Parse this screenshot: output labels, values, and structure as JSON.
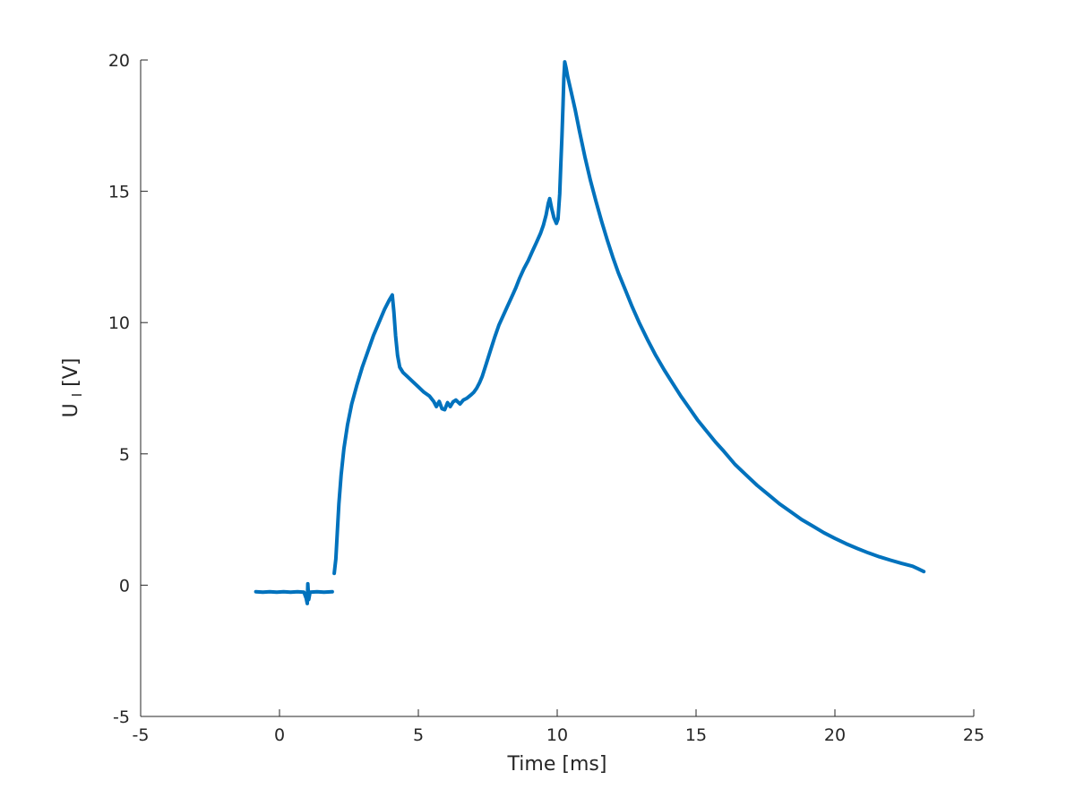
{
  "figure": {
    "background": "#ffffff",
    "line_color": "#0072bd",
    "axis_color": "#262626",
    "text_color": "#262626"
  },
  "chart_data": {
    "type": "line",
    "title": "",
    "xlabel": "Time [ms]",
    "ylabel": "U_I [V]",
    "ylabel_parts": {
      "base": "U",
      "sub": "I",
      "unit": " [V]"
    },
    "xlim": [
      -5,
      25
    ],
    "ylim": [
      -5,
      20
    ],
    "xticks": [
      "-5",
      "0",
      "5",
      "10",
      "15",
      "20",
      "25"
    ],
    "yticks": [
      "-5",
      "0",
      "5",
      "10",
      "15",
      "20"
    ],
    "grid": false,
    "legend": null,
    "series": [
      {
        "name": "U_I",
        "color": "#0072bd",
        "segments": [
          [
            [
              -0.85,
              -0.25
            ],
            [
              -0.6,
              -0.27
            ],
            [
              -0.35,
              -0.25
            ],
            [
              -0.1,
              -0.27
            ],
            [
              0.15,
              -0.25
            ],
            [
              0.4,
              -0.27
            ],
            [
              0.65,
              -0.25
            ],
            [
              0.88,
              -0.27
            ],
            [
              0.96,
              -0.5
            ],
            [
              1.0,
              -0.7
            ],
            [
              1.02,
              0.05
            ],
            [
              1.05,
              -0.55
            ],
            [
              1.1,
              -0.27
            ],
            [
              1.35,
              -0.25
            ],
            [
              1.6,
              -0.27
            ],
            [
              1.9,
              -0.25
            ]
          ],
          [
            [
              1.97,
              0.45
            ],
            [
              2.03,
              1.0
            ],
            [
              2.08,
              2.0
            ],
            [
              2.14,
              3.1
            ],
            [
              2.22,
              4.2
            ],
            [
              2.32,
              5.2
            ],
            [
              2.45,
              6.1
            ],
            [
              2.6,
              6.9
            ],
            [
              2.78,
              7.6
            ],
            [
              2.98,
              8.3
            ],
            [
              3.18,
              8.9
            ],
            [
              3.38,
              9.5
            ],
            [
              3.58,
              10.0
            ],
            [
              3.78,
              10.5
            ],
            [
              3.95,
              10.85
            ],
            [
              4.06,
              11.05
            ],
            [
              4.12,
              10.4
            ],
            [
              4.18,
              9.5
            ],
            [
              4.25,
              8.75
            ],
            [
              4.33,
              8.3
            ],
            [
              4.45,
              8.1
            ],
            [
              4.6,
              7.95
            ],
            [
              4.8,
              7.75
            ],
            [
              5.0,
              7.55
            ],
            [
              5.2,
              7.35
            ],
            [
              5.4,
              7.2
            ],
            [
              5.55,
              7.0
            ],
            [
              5.65,
              6.8
            ],
            [
              5.75,
              7.0
            ],
            [
              5.85,
              6.72
            ],
            [
              5.95,
              6.68
            ],
            [
              6.05,
              6.95
            ],
            [
              6.15,
              6.8
            ],
            [
              6.25,
              6.98
            ],
            [
              6.35,
              7.05
            ],
            [
              6.5,
              6.9
            ],
            [
              6.62,
              7.05
            ],
            [
              6.75,
              7.12
            ],
            [
              6.9,
              7.25
            ],
            [
              7.0,
              7.35
            ],
            [
              7.1,
              7.5
            ],
            [
              7.2,
              7.7
            ],
            [
              7.3,
              7.95
            ],
            [
              7.45,
              8.45
            ],
            [
              7.6,
              8.95
            ],
            [
              7.75,
              9.45
            ],
            [
              7.9,
              9.9
            ],
            [
              8.05,
              10.25
            ],
            [
              8.2,
              10.6
            ],
            [
              8.35,
              10.95
            ],
            [
              8.5,
              11.3
            ],
            [
              8.65,
              11.7
            ],
            [
              8.8,
              12.05
            ],
            [
              8.95,
              12.35
            ],
            [
              9.1,
              12.7
            ],
            [
              9.25,
              13.05
            ],
            [
              9.4,
              13.4
            ],
            [
              9.5,
              13.7
            ],
            [
              9.6,
              14.1
            ],
            [
              9.68,
              14.55
            ],
            [
              9.73,
              14.72
            ],
            [
              9.8,
              14.35
            ],
            [
              9.88,
              14.0
            ],
            [
              9.97,
              13.78
            ],
            [
              10.03,
              13.95
            ],
            [
              10.09,
              14.9
            ],
            [
              10.13,
              16.0
            ],
            [
              10.17,
              17.1
            ],
            [
              10.21,
              18.3
            ],
            [
              10.24,
              19.3
            ],
            [
              10.27,
              19.93
            ],
            [
              10.32,
              19.7
            ],
            [
              10.38,
              19.35
            ],
            [
              10.5,
              18.8
            ],
            [
              10.65,
              18.1
            ],
            [
              10.8,
              17.3
            ],
            [
              11.0,
              16.3
            ],
            [
              11.2,
              15.4
            ],
            [
              11.4,
              14.6
            ],
            [
              11.6,
              13.85
            ],
            [
              11.8,
              13.15
            ],
            [
              12.0,
              12.5
            ],
            [
              12.2,
              11.9
            ],
            [
              12.45,
              11.25
            ],
            [
              12.7,
              10.6
            ],
            [
              12.95,
              10.0
            ],
            [
              13.25,
              9.35
            ],
            [
              13.55,
              8.75
            ],
            [
              13.85,
              8.2
            ],
            [
              14.15,
              7.7
            ],
            [
              14.45,
              7.2
            ],
            [
              14.75,
              6.75
            ],
            [
              15.05,
              6.3
            ],
            [
              15.35,
              5.9
            ],
            [
              15.7,
              5.45
            ],
            [
              16.0,
              5.1
            ],
            [
              16.4,
              4.6
            ],
            [
              16.8,
              4.2
            ],
            [
              17.2,
              3.8
            ],
            [
              17.6,
              3.45
            ],
            [
              18.0,
              3.1
            ],
            [
              18.4,
              2.8
            ],
            [
              18.8,
              2.5
            ],
            [
              19.2,
              2.25
            ],
            [
              19.6,
              2.0
            ],
            [
              20.0,
              1.78
            ],
            [
              20.4,
              1.58
            ],
            [
              20.8,
              1.4
            ],
            [
              21.2,
              1.23
            ],
            [
              21.6,
              1.08
            ],
            [
              22.0,
              0.95
            ],
            [
              22.4,
              0.83
            ],
            [
              22.8,
              0.72
            ],
            [
              23.0,
              0.62
            ],
            [
              23.2,
              0.52
            ]
          ]
        ]
      }
    ]
  }
}
